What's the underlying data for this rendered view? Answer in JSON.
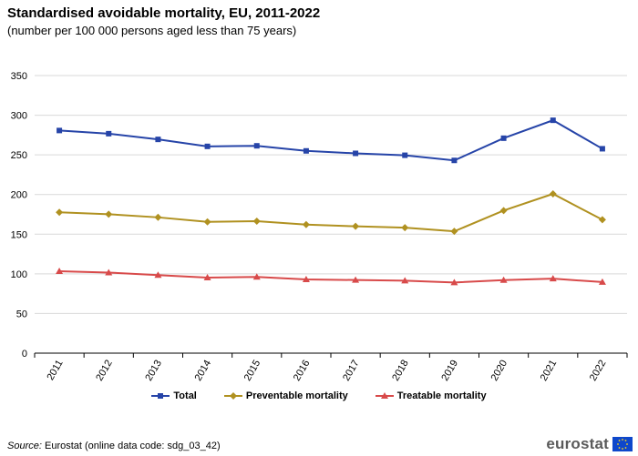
{
  "header": {
    "title": "Standardised avoidable mortality, EU, 2011-2022",
    "subtitle": "(number per 100 000 persons aged less than 75 years)"
  },
  "footer": {
    "source_label": "Source:",
    "source_text": "Eurostat (online data code: sdg_03_42)",
    "logo_text": "eurostat"
  },
  "chart_data": {
    "type": "line",
    "title": "Standardised avoidable mortality, EU, 2011-2022",
    "subtitle": "(number per 100 000 persons aged less than 75 years)",
    "xlabel": "",
    "ylabel": "",
    "categories": [
      "2011",
      "2012",
      "2013",
      "2014",
      "2015",
      "2016",
      "2017",
      "2018",
      "2019",
      "2020",
      "2021",
      "2022"
    ],
    "ylim": [
      0,
      350
    ],
    "yticks": [
      "0",
      "50",
      "100",
      "150",
      "200",
      "250",
      "300",
      "350"
    ],
    "grid": "horizontal",
    "legend_position": "bottom-center",
    "series": [
      {
        "name": "Total",
        "color": "#2644a8",
        "marker": "square",
        "values": [
          280.7,
          276.7,
          269.5,
          260.7,
          261.4,
          255.0,
          251.9,
          249.5,
          243.0,
          271.0,
          293.6,
          257.7
        ]
      },
      {
        "name": "Preventable mortality",
        "color": "#b09120",
        "marker": "diamond",
        "values": [
          177.6,
          175.2,
          171.2,
          165.6,
          166.4,
          162.1,
          159.9,
          158.2,
          153.6,
          179.8,
          200.8,
          168.2
        ]
      },
      {
        "name": "Treatable mortality",
        "color": "#d84a4a",
        "marker": "triangle",
        "values": [
          103.3,
          101.6,
          98.4,
          95.2,
          96.1,
          92.9,
          92.2,
          91.4,
          89.1,
          92.1,
          93.9,
          89.6
        ]
      }
    ]
  }
}
